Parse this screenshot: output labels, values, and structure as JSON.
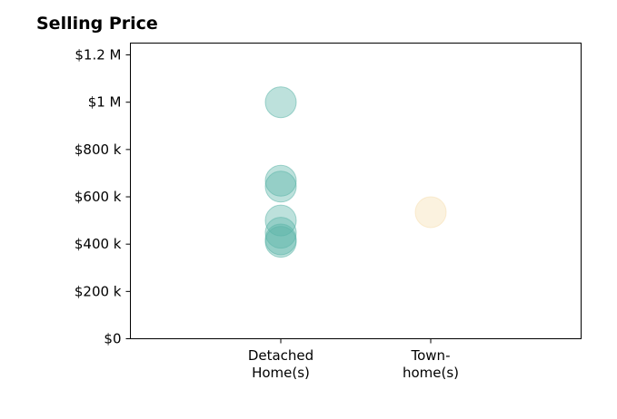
{
  "chart_data": {
    "type": "scatter",
    "title": "Selling Price",
    "categories": [
      "Detached\nHome(s)",
      "Town-\nhome(s)"
    ],
    "ylim": [
      0,
      1250000
    ],
    "y_ticks": [
      {
        "value": 0,
        "label": "$0"
      },
      {
        "value": 200000,
        "label": "$200 k"
      },
      {
        "value": 400000,
        "label": "$400 k"
      },
      {
        "value": 600000,
        "label": "$600 k"
      },
      {
        "value": 800000,
        "label": "$800 k"
      },
      {
        "value": 1000000,
        "label": "$1 M"
      },
      {
        "value": 1200000,
        "label": "$1.2 M"
      }
    ],
    "series": [
      {
        "category": "Detached\nHome(s)",
        "color": "#5bb5a8",
        "values": [
          1000000,
          668000,
          643000,
          500000,
          448000,
          420000,
          410000
        ]
      },
      {
        "category": "Town-\nhome(s)",
        "color": "#f5deb0",
        "values": [
          535000
        ]
      }
    ],
    "grid": false,
    "legend": "none"
  }
}
